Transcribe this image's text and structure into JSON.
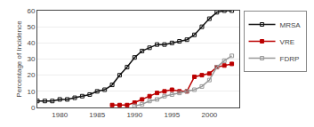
{
  "chart_data": {
    "type": "line",
    "ylabel": "Percentage of Incidence",
    "xlim": [
      1977,
      2004
    ],
    "ylim": [
      0,
      60
    ],
    "xticks": [
      1980,
      1985,
      1990,
      1995,
      2000
    ],
    "yticks": [
      0,
      10,
      20,
      30,
      40,
      50,
      60
    ],
    "grid": "y",
    "legend": "right",
    "series": [
      {
        "name": "MRSA",
        "color": "#111111",
        "marker": "square-open",
        "x": [
          1977,
          1978,
          1979,
          1980,
          1981,
          1982,
          1983,
          1984,
          1985,
          1986,
          1987,
          1988,
          1989,
          1990,
          1991,
          1992,
          1993,
          1994,
          1995,
          1996,
          1997,
          1998,
          1999,
          2000,
          2001,
          2002,
          2003
        ],
        "values": [
          4,
          4,
          4,
          5,
          5,
          6,
          7,
          8,
          10,
          11,
          14,
          20,
          25,
          31,
          35,
          37,
          39,
          39,
          40,
          41,
          42,
          45,
          50,
          55,
          59,
          60,
          60
        ]
      },
      {
        "name": "VRE",
        "color": "#bb0000",
        "marker": "square",
        "x": [
          1987,
          1988,
          1989,
          1990,
          1991,
          1992,
          1993,
          1994,
          1995,
          1996,
          1997,
          1998,
          1999,
          2000,
          2001,
          2002,
          2003
        ],
        "values": [
          1.5,
          1.5,
          1.5,
          3,
          5,
          7,
          9,
          10,
          11,
          10,
          10,
          19,
          20,
          21,
          25,
          26,
          27
        ]
      },
      {
        "name": "FDRP",
        "color": "#999999",
        "marker": "square-open",
        "x": [
          1990,
          1991,
          1992,
          1993,
          1994,
          1995,
          1996,
          1997,
          1998,
          1999,
          2000,
          2001,
          2002,
          2003
        ],
        "values": [
          1,
          2,
          4,
          5,
          7,
          8,
          9,
          10,
          11,
          13,
          17,
          25,
          29,
          32
        ]
      }
    ]
  }
}
